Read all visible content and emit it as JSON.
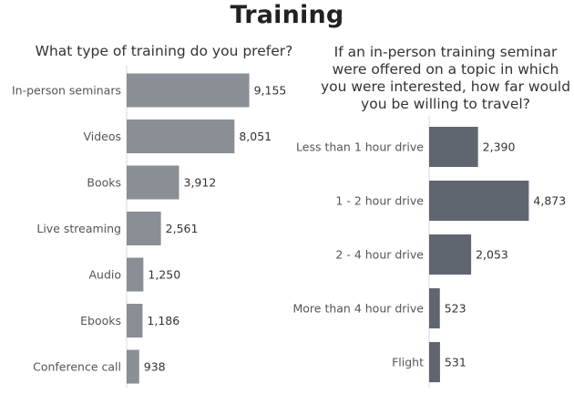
{
  "title": "Training",
  "chart_data": [
    {
      "type": "bar",
      "orientation": "horizontal",
      "title": "What type of training do you prefer?",
      "categories": [
        "In-person seminars",
        "Videos",
        "Books",
        "Live streaming",
        "Audio",
        "Ebooks",
        "Conference call"
      ],
      "values": [
        9155,
        8051,
        3912,
        2561,
        1250,
        1186,
        938
      ],
      "value_labels": [
        "9,155",
        "8,051",
        "3,912",
        "2,561",
        "1,250",
        "1,186",
        "938"
      ],
      "bar_color": "#8a8f96",
      "xlim": [
        0,
        10000
      ]
    },
    {
      "type": "bar",
      "orientation": "horizontal",
      "title": "If an in-person training seminar were offered on a topic in which you were interested, how far would you be willing to travel?",
      "categories": [
        "Less than 1 hour drive",
        "1 - 2 hour drive",
        "2 - 4 hour drive",
        "More than 4 hour drive",
        "Flight"
      ],
      "values": [
        2390,
        4873,
        2053,
        523,
        531
      ],
      "value_labels": [
        "2,390",
        "4,873",
        "2,053",
        "523",
        "531"
      ],
      "bar_color": "#5f6670",
      "xlim": [
        0,
        5300
      ]
    }
  ]
}
